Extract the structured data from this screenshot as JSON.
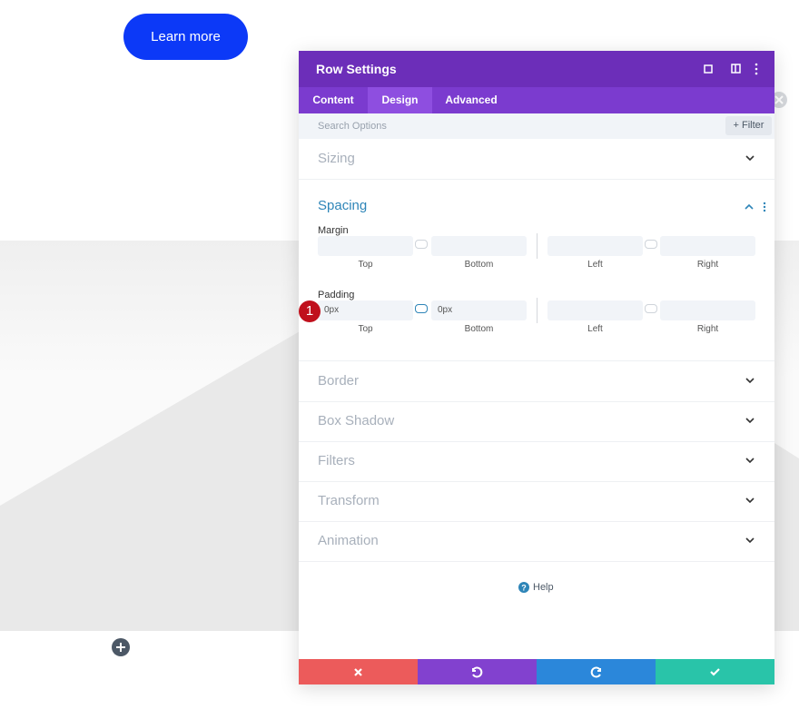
{
  "button": "Learn more",
  "modal": {
    "title": "Row Settings",
    "tabs": [
      "Content",
      "Design",
      "Advanced"
    ],
    "search_placeholder": "Search Options",
    "filter": "Filter",
    "sections_before": [
      "Sizing"
    ],
    "spacing": {
      "title": "Spacing",
      "groups": [
        {
          "label": "Margin",
          "fields": [
            {
              "label": "Top"
            },
            {
              "label": "Bottom"
            },
            {
              "label": "Left"
            },
            {
              "label": "Right"
            }
          ]
        },
        {
          "label": "Padding",
          "badge": "1",
          "fields": [
            {
              "label": "Top",
              "value": "0px"
            },
            {
              "label": "Bottom",
              "value": "0px"
            },
            {
              "label": "Left"
            },
            {
              "label": "Right"
            }
          ]
        }
      ]
    },
    "sections_after": [
      "Border",
      "Box Shadow",
      "Filters",
      "Transform",
      "Animation"
    ],
    "help": "Help"
  }
}
